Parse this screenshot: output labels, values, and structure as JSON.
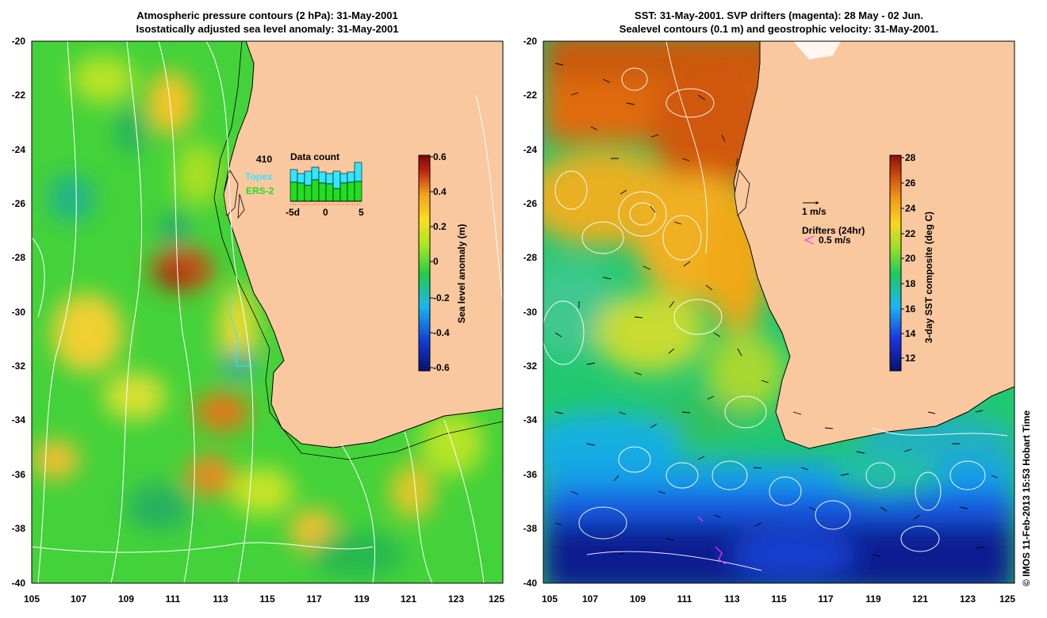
{
  "left_panel": {
    "title_line1": "Atmospheric pressure contours (2 hPa): 31-May-2001",
    "title_line2": "Isostatically adjusted sea level anomaly: 31-May-2001",
    "colorbar_label": "Sea level anomaly (m)",
    "colorbar_ticks": [
      "0.6",
      "0.4",
      "0.2",
      "0",
      "-0.2",
      "-0.4",
      "-0.6"
    ],
    "inset": {
      "count": "410",
      "title": "Data count",
      "series1": "Topex",
      "series2": "ERS-2",
      "axis_ticks": [
        "-5d",
        "0",
        "5"
      ],
      "color_series1": "#33e6ff",
      "color_series2": "#22dd22"
    }
  },
  "right_panel": {
    "title_line1": "SST: 31-May-2001. SVP drifters (magenta): 28 May - 02 Jun.",
    "title_line2": "Sealevel contours (0.1 m) and geostrophic velocity: 31-May-2001.",
    "colorbar_label": "3-day SST composite (deg C)",
    "colorbar_ticks": [
      "28",
      "26",
      "24",
      "22",
      "20",
      "18",
      "16",
      "14",
      "12"
    ],
    "velocity_scale_label": "1 m/s",
    "drifters_label": "Drifters (24hr)",
    "drifters_speed_label": "0.5 m/s",
    "drifter_color": "#ff33ff"
  },
  "axes": {
    "lat_ticks": [
      "-20",
      "-22",
      "-24",
      "-26",
      "-28",
      "-30",
      "-32",
      "-34",
      "-36",
      "-38",
      "-40"
    ],
    "lon_ticks": [
      "105",
      "107",
      "109",
      "111",
      "113",
      "115",
      "117",
      "119",
      "121",
      "123",
      "125"
    ]
  },
  "credit": "© IMOS 11-Feb-2013 15:53 Hobart Time",
  "colors": {
    "land": "#f9c89f",
    "sla_ramp": [
      "#08106a",
      "#1040d8",
      "#18b8f0",
      "#22cc44",
      "#a8e820",
      "#f8e020",
      "#f4a020",
      "#c02010",
      "#7a0808"
    ],
    "sst_ramp": [
      "#0a1070",
      "#1838e0",
      "#18b8f0",
      "#20c860",
      "#98e028",
      "#f8d820",
      "#f09a18",
      "#d05010",
      "#8a1008"
    ]
  }
}
